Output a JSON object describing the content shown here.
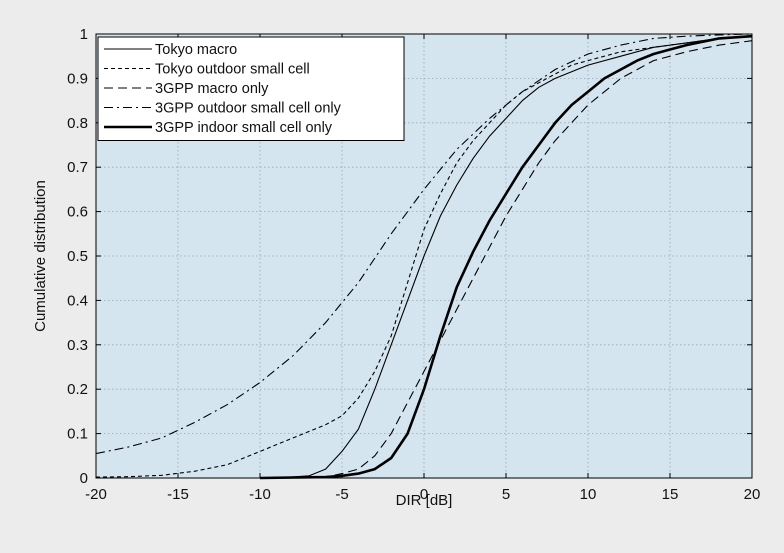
{
  "chart_data": {
    "type": "line",
    "title": "",
    "xlabel": "DIR [dB]",
    "ylabel": "Cumulative distribution",
    "xlim": [
      -20,
      20
    ],
    "ylim": [
      0,
      1
    ],
    "xticks": [
      -20,
      -15,
      -10,
      -5,
      0,
      5,
      10,
      15,
      20
    ],
    "yticks": [
      0,
      0.1,
      0.2,
      0.3,
      0.4,
      0.5,
      0.6,
      0.7,
      0.8,
      0.9,
      1
    ],
    "xtick_labels": [
      "-20",
      "-15",
      "-10",
      "-5",
      "0",
      "5",
      "10",
      "15",
      "20"
    ],
    "ytick_labels": [
      "0",
      "0.1",
      "0.2",
      "0.3",
      "0.4",
      "0.5",
      "0.6",
      "0.7",
      "0.8",
      "0.9",
      "1"
    ],
    "grid": true,
    "legend_position": "top-left",
    "colors": {
      "plot_background": "#d4e5ef",
      "page_background": "#ececec",
      "line": "#000000",
      "grid": "#9aa9b3"
    },
    "series": [
      {
        "name": "Tokyo macro",
        "style": "solid-thin",
        "x": [
          -9,
          -7,
          -6,
          -5,
          -4,
          -3,
          -2,
          -1,
          0,
          1,
          2,
          3,
          4,
          5,
          6,
          7,
          8,
          10,
          12,
          14,
          16,
          18,
          20
        ],
        "y": [
          0,
          0.005,
          0.02,
          0.06,
          0.11,
          0.2,
          0.3,
          0.4,
          0.5,
          0.59,
          0.66,
          0.72,
          0.77,
          0.81,
          0.85,
          0.88,
          0.9,
          0.93,
          0.95,
          0.97,
          0.98,
          0.99,
          0.995
        ]
      },
      {
        "name": "Tokyo outdoor small cell",
        "style": "dashed-fine",
        "x": [
          -20,
          -18,
          -16,
          -14,
          -12,
          -10,
          -8,
          -6,
          -5,
          -4,
          -3,
          -2,
          -1,
          0,
          1,
          2,
          3,
          4,
          5,
          6,
          7,
          8,
          9,
          10,
          12,
          14,
          16,
          18,
          20
        ],
        "y": [
          0.002,
          0.003,
          0.006,
          0.015,
          0.03,
          0.06,
          0.09,
          0.12,
          0.14,
          0.18,
          0.24,
          0.32,
          0.44,
          0.56,
          0.64,
          0.71,
          0.76,
          0.8,
          0.84,
          0.87,
          0.89,
          0.91,
          0.93,
          0.94,
          0.96,
          0.97,
          0.98,
          0.99,
          0.995
        ]
      },
      {
        "name": "3GPP macro only",
        "style": "dashed-long",
        "x": [
          -8,
          -6,
          -5,
          -4,
          -3,
          -2,
          -1,
          0,
          1,
          2,
          3,
          4,
          5,
          6,
          7,
          8,
          9,
          10,
          12,
          14,
          16,
          18,
          20
        ],
        "y": [
          0,
          0.002,
          0.01,
          0.02,
          0.05,
          0.1,
          0.17,
          0.24,
          0.31,
          0.38,
          0.45,
          0.52,
          0.59,
          0.65,
          0.71,
          0.76,
          0.8,
          0.84,
          0.9,
          0.94,
          0.96,
          0.975,
          0.985
        ]
      },
      {
        "name": "3GPP outdoor small cell only",
        "style": "dashdot",
        "x": [
          -20,
          -18,
          -16,
          -14,
          -12,
          -10,
          -8,
          -6,
          -4,
          -2,
          0,
          2,
          4,
          6,
          8,
          10,
          12,
          14,
          16,
          18,
          20
        ],
        "y": [
          0.055,
          0.07,
          0.09,
          0.125,
          0.165,
          0.215,
          0.275,
          0.35,
          0.44,
          0.55,
          0.65,
          0.74,
          0.81,
          0.87,
          0.92,
          0.955,
          0.975,
          0.99,
          0.995,
          0.998,
          1.0
        ]
      },
      {
        "name": "3GPP indoor small cell only",
        "style": "solid-thick",
        "x": [
          -10,
          -6,
          -5,
          -4,
          -3,
          -2,
          -1,
          0,
          1,
          2,
          3,
          4,
          5,
          6,
          7,
          8,
          9,
          10,
          11,
          12,
          13,
          14,
          15,
          16,
          18,
          20
        ],
        "y": [
          0,
          0.002,
          0.005,
          0.01,
          0.02,
          0.045,
          0.1,
          0.2,
          0.32,
          0.43,
          0.51,
          0.58,
          0.64,
          0.7,
          0.75,
          0.8,
          0.84,
          0.87,
          0.9,
          0.92,
          0.94,
          0.955,
          0.965,
          0.975,
          0.99,
          0.995
        ]
      }
    ]
  }
}
